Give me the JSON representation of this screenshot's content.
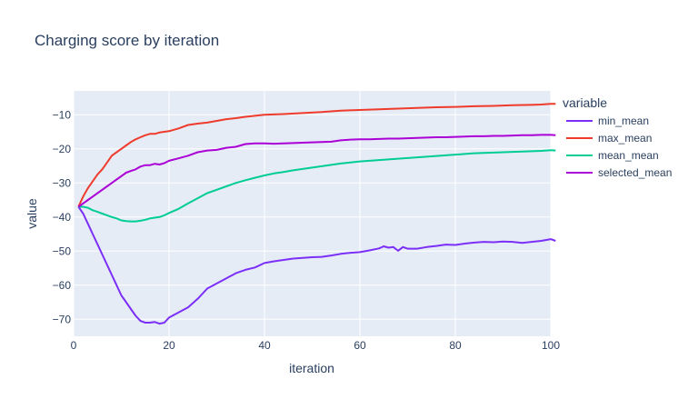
{
  "chart_data": {
    "type": "line",
    "title": "Charging score by iteration",
    "xlabel": "iteration",
    "ylabel": "value",
    "xlim": [
      0,
      100
    ],
    "ylim": [
      -75,
      -3
    ],
    "xticks": [
      0,
      20,
      40,
      60,
      80,
      100
    ],
    "yticks": [
      -70,
      -60,
      -50,
      -40,
      -30,
      -20,
      -10
    ],
    "grid": true,
    "legend_title": "variable",
    "legend_position": "right",
    "series": [
      {
        "name": "min_mean",
        "color": "#7b2ff7",
        "points": [
          [
            1,
            -37
          ],
          [
            2,
            -39
          ],
          [
            3,
            -42
          ],
          [
            4,
            -45
          ],
          [
            5,
            -48
          ],
          [
            6,
            -51
          ],
          [
            7,
            -54
          ],
          [
            8,
            -57
          ],
          [
            9,
            -60
          ],
          [
            10,
            -63
          ],
          [
            11,
            -65
          ],
          [
            12,
            -67
          ],
          [
            13,
            -69
          ],
          [
            14,
            -70.5
          ],
          [
            15,
            -71
          ],
          [
            16,
            -71
          ],
          [
            17,
            -70.8
          ],
          [
            18,
            -71.3
          ],
          [
            19,
            -71
          ],
          [
            20,
            -69.5
          ],
          [
            22,
            -68
          ],
          [
            24,
            -66.5
          ],
          [
            26,
            -64
          ],
          [
            28,
            -61
          ],
          [
            30,
            -59.5
          ],
          [
            32,
            -58
          ],
          [
            34,
            -56.5
          ],
          [
            36,
            -55.5
          ],
          [
            38,
            -54.8
          ],
          [
            40,
            -53.5
          ],
          [
            42,
            -53
          ],
          [
            44,
            -52.6
          ],
          [
            46,
            -52.2
          ],
          [
            48,
            -52
          ],
          [
            50,
            -51.8
          ],
          [
            52,
            -51.7
          ],
          [
            54,
            -51.3
          ],
          [
            56,
            -50.8
          ],
          [
            58,
            -50.5
          ],
          [
            60,
            -50.3
          ],
          [
            62,
            -49.8
          ],
          [
            64,
            -49.2
          ],
          [
            65,
            -48.6
          ],
          [
            66,
            -49
          ],
          [
            67,
            -48.8
          ],
          [
            68,
            -49.9
          ],
          [
            69,
            -48.8
          ],
          [
            70,
            -49.3
          ],
          [
            72,
            -49.3
          ],
          [
            74,
            -48.8
          ],
          [
            76,
            -48.5
          ],
          [
            78,
            -48.1
          ],
          [
            80,
            -48.2
          ],
          [
            82,
            -47.8
          ],
          [
            84,
            -47.5
          ],
          [
            86,
            -47.3
          ],
          [
            88,
            -47.4
          ],
          [
            90,
            -47.2
          ],
          [
            92,
            -47.3
          ],
          [
            94,
            -47.6
          ],
          [
            96,
            -47.3
          ],
          [
            98,
            -47.0
          ],
          [
            100,
            -46.5
          ],
          [
            101,
            -47.0
          ]
        ]
      },
      {
        "name": "max_mean",
        "color": "#ef3b2c",
        "points": [
          [
            1,
            -37
          ],
          [
            2,
            -34
          ],
          [
            3,
            -31.5
          ],
          [
            4,
            -29.5
          ],
          [
            5,
            -27.5
          ],
          [
            6,
            -26
          ],
          [
            7,
            -24
          ],
          [
            8,
            -22
          ],
          [
            9,
            -21
          ],
          [
            10,
            -20
          ],
          [
            11,
            -19
          ],
          [
            12,
            -18
          ],
          [
            13,
            -17.2
          ],
          [
            14,
            -16.6
          ],
          [
            15,
            -16
          ],
          [
            16,
            -15.6
          ],
          [
            17,
            -15.6
          ],
          [
            18,
            -15.2
          ],
          [
            19,
            -15
          ],
          [
            20,
            -14.8
          ],
          [
            22,
            -14
          ],
          [
            24,
            -13
          ],
          [
            26,
            -12.6
          ],
          [
            28,
            -12.3
          ],
          [
            30,
            -11.8
          ],
          [
            32,
            -11.3
          ],
          [
            34,
            -11
          ],
          [
            36,
            -10.6
          ],
          [
            38,
            -10.3
          ],
          [
            40,
            -10
          ],
          [
            44,
            -9.8
          ],
          [
            48,
            -9.5
          ],
          [
            52,
            -9.2
          ],
          [
            56,
            -8.8
          ],
          [
            60,
            -8.6
          ],
          [
            64,
            -8.4
          ],
          [
            68,
            -8.2
          ],
          [
            72,
            -8.0
          ],
          [
            76,
            -7.8
          ],
          [
            80,
            -7.7
          ],
          [
            84,
            -7.5
          ],
          [
            88,
            -7.4
          ],
          [
            92,
            -7.2
          ],
          [
            96,
            -7.1
          ],
          [
            98,
            -7.0
          ],
          [
            100,
            -6.8
          ],
          [
            101,
            -6.8
          ]
        ]
      },
      {
        "name": "mean_mean",
        "color": "#00cc96",
        "points": [
          [
            1,
            -37
          ],
          [
            2,
            -37
          ],
          [
            3,
            -37.3
          ],
          [
            4,
            -38
          ],
          [
            5,
            -38.5
          ],
          [
            6,
            -39
          ],
          [
            7,
            -39.5
          ],
          [
            8,
            -40
          ],
          [
            9,
            -40.4
          ],
          [
            10,
            -41
          ],
          [
            11,
            -41.2
          ],
          [
            12,
            -41.3
          ],
          [
            13,
            -41.3
          ],
          [
            14,
            -41.1
          ],
          [
            15,
            -40.8
          ],
          [
            16,
            -40.4
          ],
          [
            17,
            -40.2
          ],
          [
            18,
            -40
          ],
          [
            19,
            -39.5
          ],
          [
            20,
            -38.8
          ],
          [
            22,
            -37.6
          ],
          [
            24,
            -36
          ],
          [
            26,
            -34.5
          ],
          [
            28,
            -33
          ],
          [
            30,
            -32
          ],
          [
            32,
            -31
          ],
          [
            34,
            -30
          ],
          [
            36,
            -29.2
          ],
          [
            38,
            -28.5
          ],
          [
            40,
            -27.8
          ],
          [
            42,
            -27.2
          ],
          [
            44,
            -26.8
          ],
          [
            46,
            -26.3
          ],
          [
            48,
            -25.9
          ],
          [
            50,
            -25.5
          ],
          [
            52,
            -25.1
          ],
          [
            54,
            -24.7
          ],
          [
            56,
            -24.3
          ],
          [
            58,
            -24.0
          ],
          [
            60,
            -23.7
          ],
          [
            62,
            -23.5
          ],
          [
            64,
            -23.3
          ],
          [
            66,
            -23.1
          ],
          [
            68,
            -22.9
          ],
          [
            70,
            -22.7
          ],
          [
            72,
            -22.5
          ],
          [
            74,
            -22.3
          ],
          [
            76,
            -22.1
          ],
          [
            78,
            -21.9
          ],
          [
            80,
            -21.7
          ],
          [
            82,
            -21.5
          ],
          [
            84,
            -21.3
          ],
          [
            86,
            -21.2
          ],
          [
            88,
            -21.1
          ],
          [
            90,
            -21.0
          ],
          [
            92,
            -20.9
          ],
          [
            94,
            -20.8
          ],
          [
            96,
            -20.7
          ],
          [
            98,
            -20.6
          ],
          [
            100,
            -20.4
          ],
          [
            101,
            -20.5
          ]
        ]
      },
      {
        "name": "selected_mean",
        "color": "#ab00d6",
        "points": [
          [
            1,
            -37
          ],
          [
            2,
            -36
          ],
          [
            3,
            -35
          ],
          [
            4,
            -34
          ],
          [
            5,
            -33
          ],
          [
            6,
            -32
          ],
          [
            7,
            -31
          ],
          [
            8,
            -30
          ],
          [
            9,
            -29
          ],
          [
            10,
            -28
          ],
          [
            11,
            -27
          ],
          [
            12,
            -26.5
          ],
          [
            13,
            -26
          ],
          [
            14,
            -25.2
          ],
          [
            15,
            -24.8
          ],
          [
            16,
            -24.8
          ],
          [
            17,
            -24.4
          ],
          [
            18,
            -24.6
          ],
          [
            19,
            -24.2
          ],
          [
            20,
            -23.5
          ],
          [
            22,
            -22.8
          ],
          [
            24,
            -22
          ],
          [
            26,
            -21
          ],
          [
            28,
            -20.5
          ],
          [
            30,
            -20.3
          ],
          [
            32,
            -19.7
          ],
          [
            34,
            -19.4
          ],
          [
            36,
            -18.6
          ],
          [
            38,
            -18.4
          ],
          [
            40,
            -18.4
          ],
          [
            42,
            -18.5
          ],
          [
            44,
            -18.4
          ],
          [
            46,
            -18.3
          ],
          [
            48,
            -18.2
          ],
          [
            50,
            -18.1
          ],
          [
            52,
            -18.0
          ],
          [
            54,
            -17.9
          ],
          [
            56,
            -17.5
          ],
          [
            58,
            -17.3
          ],
          [
            60,
            -17.2
          ],
          [
            62,
            -17.2
          ],
          [
            64,
            -17.1
          ],
          [
            66,
            -17.0
          ],
          [
            68,
            -17.0
          ],
          [
            70,
            -16.9
          ],
          [
            72,
            -16.8
          ],
          [
            74,
            -16.7
          ],
          [
            76,
            -16.6
          ],
          [
            78,
            -16.6
          ],
          [
            80,
            -16.5
          ],
          [
            82,
            -16.4
          ],
          [
            84,
            -16.3
          ],
          [
            86,
            -16.3
          ],
          [
            88,
            -16.2
          ],
          [
            90,
            -16.2
          ],
          [
            92,
            -16.1
          ],
          [
            94,
            -16.0
          ],
          [
            96,
            -16.0
          ],
          [
            98,
            -15.9
          ],
          [
            100,
            -15.9
          ],
          [
            101,
            -16.0
          ]
        ]
      }
    ]
  }
}
